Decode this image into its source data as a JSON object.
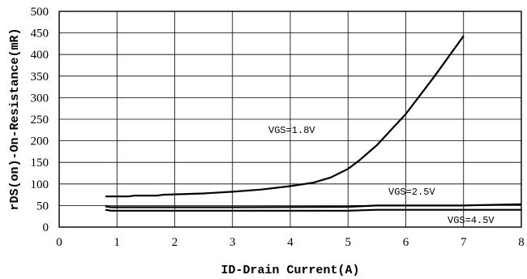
{
  "chart_data": {
    "type": "line",
    "title": "",
    "xlabel": "ID-Drain Current(A)",
    "ylabel": "rDS(on)-On-Resistance(mR)",
    "xlim": [
      0,
      8
    ],
    "ylim": [
      0,
      500
    ],
    "xticks": [
      0,
      1,
      2,
      3,
      4,
      5,
      6,
      7,
      8
    ],
    "yticks": [
      0,
      50,
      100,
      150,
      200,
      250,
      300,
      350,
      400,
      450,
      500
    ],
    "grid": true,
    "series": [
      {
        "name": "VGS=1.8V",
        "x": [
          0.8,
          1.2,
          1.3,
          1.7,
          1.8,
          2.5,
          3.0,
          3.5,
          4.0,
          4.4,
          4.7,
          5.0,
          5.2,
          5.5,
          6.0,
          6.5,
          7.0
        ],
        "y": [
          71,
          71,
          73,
          73,
          75,
          78,
          82,
          87,
          95,
          103,
          115,
          135,
          155,
          190,
          262,
          350,
          443
        ]
      },
      {
        "name": "VGS=2.5V",
        "x": [
          0.8,
          0.9,
          1.5,
          3.0,
          5.0,
          5.5,
          7.0,
          8.0
        ],
        "y": [
          48,
          46,
          46,
          46,
          47,
          50,
          50,
          53
        ]
      },
      {
        "name": "VGS=4.5V",
        "x": [
          0.8,
          0.9,
          1.5,
          3.0,
          5.0,
          5.5,
          7.0,
          8.0
        ],
        "y": [
          40,
          38,
          38,
          38,
          38,
          40,
          40,
          40
        ]
      }
    ]
  }
}
